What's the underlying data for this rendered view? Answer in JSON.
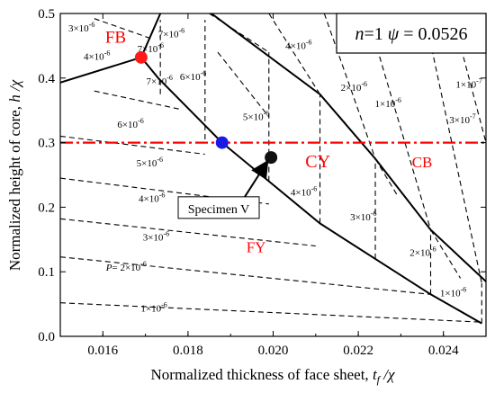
{
  "chart_data": {
    "type": "line",
    "title": "",
    "xlabel_main": "Normalized thickness of face sheet, ",
    "xlabel_sym": "t",
    "xlabel_sub": "f",
    "xlabel_tail": " /χ",
    "ylabel_main": "Normalized height of core, ",
    "ylabel_sym": "h /χ",
    "xlim": [
      0.015,
      0.025
    ],
    "ylim": [
      0.0,
      0.5
    ],
    "xticks": [
      {
        "v": 0.016,
        "label": "0.016"
      },
      {
        "v": 0.018,
        "label": "0.018"
      },
      {
        "v": 0.02,
        "label": "0.020"
      },
      {
        "v": 0.022,
        "label": "0.022"
      },
      {
        "v": 0.024,
        "label": "0.024"
      }
    ],
    "yticks": [
      {
        "v": 0.0,
        "label": "0.0"
      },
      {
        "v": 0.1,
        "label": "0.1"
      },
      {
        "v": 0.2,
        "label": "0.2"
      },
      {
        "v": 0.3,
        "label": "0.3"
      },
      {
        "v": 0.4,
        "label": "0.4"
      },
      {
        "v": 0.5,
        "label": "0.5"
      }
    ],
    "parameters": {
      "n": "n",
      "n_val": "=1",
      "psi": "ψ",
      "psi_val": "= 0.0526"
    },
    "boundaries": [
      [
        [
          0.015,
          0.393
        ],
        [
          0.0169,
          0.432
        ],
        [
          0.01735,
          0.5
        ]
      ],
      [
        [
          0.0169,
          0.432
        ],
        [
          0.0173,
          0.4
        ],
        [
          0.0188,
          0.3
        ],
        [
          0.0211,
          0.175
        ],
        [
          0.0237,
          0.065
        ],
        [
          0.0249,
          0.02
        ]
      ],
      [
        [
          0.01855,
          0.5
        ],
        [
          0.0211,
          0.375
        ],
        [
          0.0224,
          0.275
        ],
        [
          0.0237,
          0.165
        ],
        [
          0.025,
          0.085
        ]
      ]
    ],
    "vertical_segments": [
      {
        "x": 0.01735,
        "y0": 0.375,
        "y1": 0.49
      },
      {
        "x": 0.0184,
        "y0": 0.305,
        "y1": 0.49
      },
      {
        "x": 0.0199,
        "y0": 0.24,
        "y1": 0.44
      },
      {
        "x": 0.0211,
        "y0": 0.175,
        "y1": 0.375
      },
      {
        "x": 0.0224,
        "y0": 0.12,
        "y1": 0.275
      },
      {
        "x": 0.0237,
        "y0": 0.065,
        "y1": 0.165
      },
      {
        "x": 0.0249,
        "y0": 0.02,
        "y1": 0.082
      }
    ],
    "contours": [
      {
        "pts": [
          [
            0.015,
            0.052
          ],
          [
            0.0249,
            0.022
          ]
        ],
        "label": "1×10",
        "exp": "-6",
        "lx": 0.0172,
        "ly": 0.038
      },
      {
        "pts": [
          [
            0.015,
            0.123
          ],
          [
            0.0237,
            0.065
          ]
        ],
        "label": "= 2×10",
        "prefix": "P",
        "exp": "-6",
        "lx": 0.01655,
        "ly": 0.102
      },
      {
        "pts": [
          [
            0.015,
            0.182
          ],
          [
            0.021,
            0.14
          ]
        ],
        "label": "3×10",
        "exp": "-6",
        "lx": 0.01725,
        "ly": 0.148
      },
      {
        "pts": [
          [
            0.015,
            0.245
          ],
          [
            0.0199,
            0.205
          ]
        ],
        "label": "4×10",
        "exp": "-6",
        "lx": 0.01715,
        "ly": 0.208
      },
      {
        "pts": [
          [
            0.015,
            0.31
          ],
          [
            0.0184,
            0.282
          ]
        ],
        "label": "5×10",
        "exp": "-6",
        "lx": 0.0171,
        "ly": 0.263
      },
      {
        "pts": [
          [
            0.0158,
            0.38
          ],
          [
            0.0178,
            0.352
          ]
        ],
        "label": "6×10",
        "exp": "-6",
        "lx": 0.01665,
        "ly": 0.323
      },
      {
        "pts": [
          [
            0.0158,
            0.492
          ],
          [
            0.0171,
            0.462
          ]
        ],
        "label": "3×10",
        "exp": "-6",
        "lx": 0.0155,
        "ly": 0.472
      },
      {
        "pts": [
          [
            0.0187,
            0.44
          ],
          [
            0.0199,
            0.34
          ]
        ],
        "label": "5×10",
        "exp": "-6",
        "lx": 0.0196,
        "ly": 0.335
      },
      {
        "pts": [
          [
            0.0185,
            0.5
          ],
          [
            0.0199,
            0.44
          ]
        ],
        "label": "",
        "exp": "",
        "lx": 0,
        "ly": 0
      },
      {
        "pts": [
          [
            0.0199,
            0.5
          ],
          [
            0.0211,
            0.375
          ]
        ],
        "label": "4×10",
        "exp": "-6",
        "lx": 0.0206,
        "ly": 0.445
      },
      {
        "pts": [
          [
            0.0211,
            0.375
          ],
          [
            0.0217,
            0.33
          ]
        ],
        "label": "",
        "exp": "",
        "lx": 0,
        "ly": 0
      },
      {
        "pts": [
          [
            0.0212,
            0.5
          ],
          [
            0.0224,
            0.275
          ]
        ],
        "label": "2×10",
        "exp": "-6",
        "lx": 0.0219,
        "ly": 0.38
      },
      {
        "pts": [
          [
            0.0224,
            0.275
          ],
          [
            0.0229,
            0.22
          ]
        ],
        "label": "",
        "exp": "",
        "lx": 0,
        "ly": 0
      },
      {
        "pts": [
          [
            0.0222,
            0.5
          ],
          [
            0.0237,
            0.165
          ]
        ],
        "label": "1×10",
        "exp": "-6",
        "lx": 0.0227,
        "ly": 0.355
      },
      {
        "pts": [
          [
            0.0237,
            0.165
          ],
          [
            0.0244,
            0.09
          ]
        ],
        "label": "",
        "exp": "",
        "lx": 0,
        "ly": 0
      },
      {
        "pts": [
          [
            0.02355,
            0.5
          ],
          [
            0.0249,
            0.082
          ]
        ],
        "label": "3×10",
        "exp": "-7",
        "lx": 0.02445,
        "ly": 0.33
      },
      {
        "pts": [
          [
            0.0242,
            0.5
          ],
          [
            0.025,
            0.3
          ]
        ],
        "label": "1×10",
        "exp": "-7",
        "lx": 0.0246,
        "ly": 0.385
      }
    ],
    "extra_labels": [
      {
        "label": "7×10",
        "exp": "-6",
        "lx": 0.01712,
        "ly": 0.44
      },
      {
        "label": "7×10",
        "exp": "-6",
        "lx": 0.01761,
        "ly": 0.463
      },
      {
        "label": "7×10",
        "exp": "-6",
        "lx": 0.01733,
        "ly": 0.39
      },
      {
        "label": "4×10",
        "exp": "-6",
        "lx": 0.01586,
        "ly": 0.428
      },
      {
        "label": "6×10",
        "exp": "-6",
        "lx": 0.01812,
        "ly": 0.397
      },
      {
        "label": "4×10",
        "exp": "-6",
        "lx": 0.02072,
        "ly": 0.218
      },
      {
        "label": "3×10",
        "exp": "-6",
        "lx": 0.02212,
        "ly": 0.18
      },
      {
        "label": "2×10",
        "exp": "-6",
        "lx": 0.02352,
        "ly": 0.125
      },
      {
        "label": "1×10",
        "exp": "-6",
        "lx": 0.02423,
        "ly": 0.062
      }
    ],
    "threshold": {
      "y": 0.3,
      "color": "#ff0000"
    },
    "regions": [
      {
        "label": "FB",
        "x": 0.0163,
        "y": 0.455,
        "size": 19
      },
      {
        "label": "CY",
        "x": 0.02105,
        "y": 0.262,
        "size": 20
      },
      {
        "label": "CB",
        "x": 0.0235,
        "y": 0.262,
        "size": 17
      },
      {
        "label": "FY",
        "x": 0.0196,
        "y": 0.13,
        "size": 17
      }
    ],
    "points": [
      {
        "name": "FB transition",
        "x": 0.0169,
        "y": 0.432,
        "color": "#ff1a1a"
      },
      {
        "name": "threshold intersection",
        "x": 0.0188,
        "y": 0.3,
        "color": "#1a1ae6"
      },
      {
        "name": "Specimen V",
        "x": 0.01995,
        "y": 0.277,
        "color": "#111111"
      }
    ],
    "annotation": {
      "text": "Specimen V",
      "x": 0.0187,
      "y": 0.198
    }
  }
}
